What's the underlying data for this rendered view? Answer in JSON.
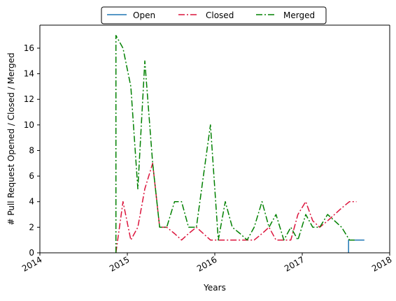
{
  "chart_data": {
    "type": "line",
    "xlabel": "Years",
    "ylabel": "# Pull Request Opened / Closed / Merged",
    "xlim": [
      2014.0,
      2018.0
    ],
    "ylim": [
      0,
      17.8
    ],
    "x_ticks": [
      2014,
      2015,
      2016,
      2017,
      2018
    ],
    "x_tick_labels": [
      "2014",
      "2015",
      "2016",
      "2017",
      "2018"
    ],
    "y_ticks": [
      0,
      2,
      4,
      6,
      8,
      10,
      12,
      14,
      16
    ],
    "y_tick_labels": [
      "0",
      "2",
      "4",
      "6",
      "8",
      "10",
      "12",
      "14",
      "16"
    ],
    "grid": false,
    "legend": {
      "placement": "top-center",
      "entries": [
        "Open",
        "Closed",
        "Merged"
      ]
    },
    "colors": {
      "Open": "#1f77b4",
      "Closed": "#dc143c",
      "Merged": "#008000"
    },
    "series": [
      {
        "name": "Open",
        "style": "solid",
        "step": true,
        "x": [
          2017.53,
          2017.53,
          2017.71
        ],
        "y": [
          0,
          1,
          1
        ]
      },
      {
        "name": "Closed",
        "style": "dashdot",
        "x": [
          2014.87,
          2014.95,
          2015.04,
          2015.12,
          2015.2,
          2015.29,
          2015.37,
          2015.45,
          2015.54,
          2015.62,
          2015.7,
          2015.79,
          2015.87,
          2015.95,
          2016.04,
          2016.12,
          2016.2,
          2016.29,
          2016.37,
          2016.45,
          2016.54,
          2016.62,
          2016.7,
          2016.79,
          2016.87,
          2016.95,
          2017.04,
          2017.12,
          2017.2,
          2017.29,
          2017.37,
          2017.45,
          2017.54,
          2017.62
        ],
        "y": [
          0,
          4,
          1,
          2,
          5,
          7,
          2,
          2,
          1.5,
          1,
          1.5,
          2,
          1.5,
          1,
          1,
          1,
          1,
          1,
          1,
          1,
          1.5,
          2,
          1,
          1,
          1,
          3,
          4,
          2.5,
          2,
          2.5,
          3,
          3.5,
          4,
          4
        ]
      },
      {
        "name": "Merged",
        "style": "dashdot",
        "x": [
          2014.87,
          2014.87,
          2014.95,
          2015.04,
          2015.12,
          2015.2,
          2015.29,
          2015.37,
          2015.45,
          2015.54,
          2015.62,
          2015.7,
          2015.79,
          2015.87,
          2015.95,
          2016.04,
          2016.12,
          2016.2,
          2016.29,
          2016.37,
          2016.45,
          2016.54,
          2016.62,
          2016.7,
          2016.79,
          2016.87,
          2016.95,
          2017.04,
          2017.12,
          2017.2,
          2017.29,
          2017.37,
          2017.45,
          2017.54,
          2017.62
        ],
        "y": [
          0,
          17,
          16,
          13,
          5,
          15,
          7,
          2,
          2,
          4,
          4,
          2,
          2,
          6,
          10,
          1,
          4,
          2,
          1.5,
          1,
          2,
          4,
          2,
          3,
          1,
          2,
          1,
          3,
          2,
          2,
          3,
          2.5,
          2,
          1,
          1
        ]
      }
    ]
  }
}
